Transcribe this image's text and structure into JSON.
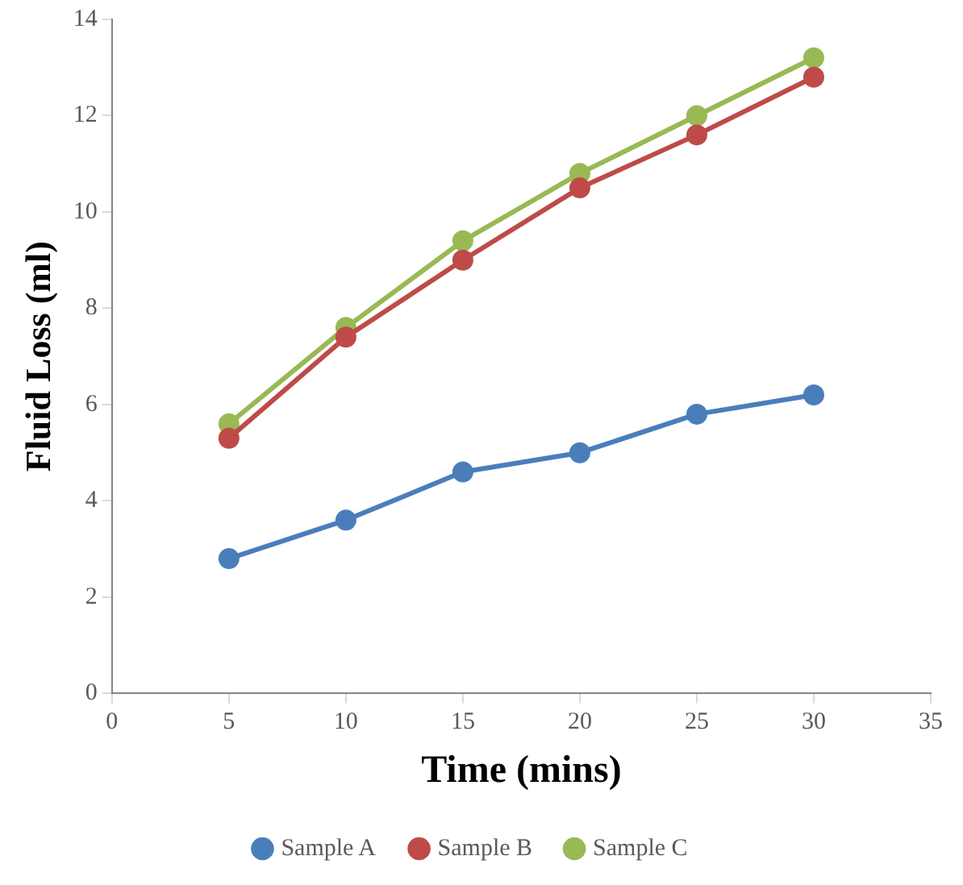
{
  "chart_data": {
    "type": "line",
    "xlabel": "Time (mins)",
    "ylabel": "Fluid Loss (ml)",
    "x": [
      5,
      10,
      15,
      20,
      25,
      30
    ],
    "series": [
      {
        "name": "Sample A",
        "color": "#4a7ebb",
        "values": [
          2.8,
          3.6,
          4.6,
          5.0,
          5.8,
          6.2
        ]
      },
      {
        "name": "Sample B",
        "color": "#be4b48",
        "values": [
          5.3,
          7.4,
          9.0,
          10.5,
          11.6,
          12.8
        ]
      },
      {
        "name": "Sample C",
        "color": "#98b954",
        "values": [
          5.6,
          7.6,
          9.4,
          10.8,
          12.0,
          13.2
        ]
      }
    ],
    "xlim": [
      0,
      35
    ],
    "xticks": [
      0,
      5,
      10,
      15,
      20,
      25,
      30,
      35
    ],
    "ylim": [
      0,
      14
    ],
    "yticks": [
      0,
      2,
      4,
      6,
      8,
      10,
      12,
      14
    ],
    "grid": false,
    "legend": "bottom",
    "marker": "circle",
    "line_style": "solid"
  }
}
